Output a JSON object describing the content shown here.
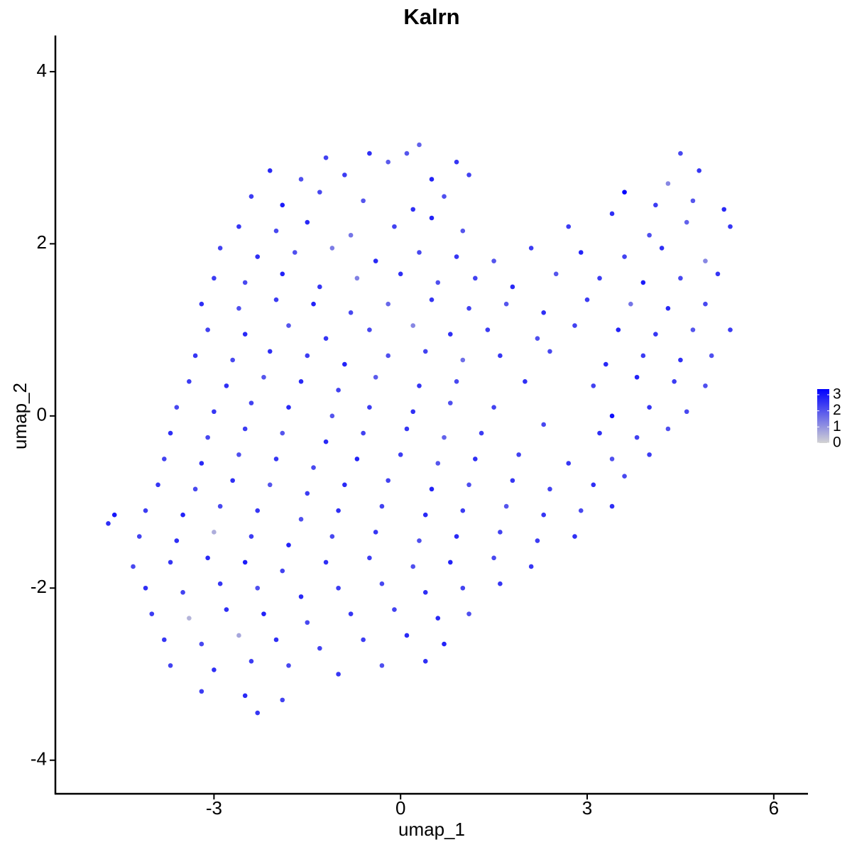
{
  "chart_data": {
    "type": "scatter",
    "title": "Kalrn",
    "x_label": "umap_1",
    "y_label": "umap_2",
    "xlim": [
      -5.55,
      6.55
    ],
    "ylim": [
      -4.39,
      4.42
    ],
    "xticks": [
      -3,
      0,
      3,
      6
    ],
    "yticks": [
      -4,
      -2,
      0,
      2,
      4
    ],
    "color_low": "#d3d3d3",
    "color_high": "#0000ff",
    "clim": [
      0,
      3.35
    ],
    "colorbar_ticks": [
      0,
      1,
      2,
      3
    ],
    "x": [
      -1.2,
      -0.5,
      0.1,
      0.3,
      0.9,
      4.5,
      -2.1,
      -1.6,
      -0.9,
      -0.2,
      0.5,
      1.1,
      4.3,
      4.8,
      -2.4,
      -1.9,
      -1.3,
      -0.6,
      0.2,
      0.7,
      3.6,
      4.1,
      4.7,
      5.2,
      -2.6,
      -2.0,
      -1.5,
      -0.8,
      -0.1,
      0.5,
      1.0,
      2.7,
      3.4,
      4.0,
      4.6,
      5.3,
      -2.9,
      -2.3,
      -1.7,
      -1.1,
      -0.4,
      0.3,
      0.9,
      1.5,
      2.1,
      2.9,
      3.6,
      4.2,
      4.9,
      -3.0,
      -2.5,
      -1.9,
      -1.3,
      -0.7,
      0.0,
      0.6,
      1.2,
      1.8,
      2.5,
      3.2,
      3.9,
      4.5,
      5.1,
      -3.2,
      -2.6,
      -2.0,
      -1.4,
      -0.8,
      -0.2,
      0.5,
      1.1,
      1.7,
      2.3,
      3.0,
      3.7,
      4.3,
      4.9,
      -3.1,
      -2.5,
      -1.8,
      -1.2,
      -0.5,
      0.2,
      0.8,
      1.4,
      2.2,
      2.8,
      3.5,
      4.1,
      4.7,
      5.3,
      -3.3,
      -2.7,
      -2.1,
      -1.5,
      -0.9,
      -0.2,
      0.4,
      1.0,
      1.6,
      2.4,
      3.3,
      3.9,
      4.5,
      5.0,
      -3.4,
      -2.8,
      -2.2,
      -1.6,
      -1.0,
      -0.4,
      0.3,
      0.9,
      2.0,
      3.1,
      3.8,
      4.4,
      4.9,
      -3.6,
      -3.0,
      -2.4,
      -1.8,
      -1.1,
      -0.5,
      0.2,
      0.8,
      1.5,
      3.4,
      4.0,
      4.6,
      -3.7,
      -3.1,
      -2.5,
      -1.9,
      -1.2,
      -0.6,
      0.1,
      0.7,
      1.3,
      2.3,
      3.2,
      3.8,
      4.3,
      -3.8,
      -3.2,
      -2.6,
      -2.0,
      -1.4,
      -0.7,
      0.0,
      0.6,
      1.2,
      1.9,
      2.7,
      3.4,
      4.0,
      -3.9,
      -3.3,
      -2.7,
      -2.1,
      -1.5,
      -0.9,
      -0.2,
      0.5,
      1.1,
      1.8,
      2.4,
      3.1,
      3.6,
      -4.1,
      -3.5,
      -2.9,
      -2.3,
      -1.6,
      -1.0,
      -0.3,
      0.4,
      1.0,
      1.7,
      2.3,
      2.9,
      3.4,
      -4.2,
      -3.6,
      -3.0,
      -2.4,
      -1.8,
      -1.1,
      -0.4,
      0.3,
      0.9,
      1.6,
      2.2,
      2.8,
      -4.3,
      -3.7,
      -3.1,
      -2.5,
      -1.9,
      -1.2,
      -0.5,
      0.2,
      0.8,
      1.5,
      2.1,
      -4.1,
      -3.5,
      -2.9,
      -2.3,
      -1.6,
      -1.0,
      -0.3,
      0.4,
      1.0,
      1.6,
      -4.0,
      -3.4,
      -2.8,
      -2.2,
      -1.5,
      -0.8,
      -0.1,
      0.6,
      1.1,
      -3.8,
      -3.2,
      -2.6,
      -2.0,
      -1.3,
      -0.6,
      0.1,
      0.7,
      -3.7,
      -3.0,
      -2.4,
      -1.8,
      -1.0,
      -0.3,
      0.4,
      -3.2,
      -2.5,
      -1.9,
      -2.3,
      -4.7,
      -4.6
    ],
    "y": [
      3.0,
      3.05,
      3.05,
      3.15,
      2.95,
      3.05,
      2.85,
      2.75,
      2.8,
      2.95,
      2.75,
      2.8,
      2.7,
      2.85,
      2.55,
      2.45,
      2.6,
      2.5,
      2.4,
      2.55,
      2.6,
      2.45,
      2.5,
      2.4,
      2.2,
      2.15,
      2.25,
      2.1,
      2.2,
      2.3,
      2.15,
      2.2,
      2.35,
      2.1,
      2.25,
      2.2,
      1.95,
      1.85,
      1.9,
      1.95,
      1.8,
      1.9,
      1.85,
      1.8,
      1.95,
      1.9,
      1.85,
      1.95,
      1.8,
      1.6,
      1.55,
      1.65,
      1.5,
      1.6,
      1.65,
      1.55,
      1.6,
      1.5,
      1.65,
      1.6,
      1.55,
      1.6,
      1.65,
      1.3,
      1.25,
      1.35,
      1.3,
      1.2,
      1.3,
      1.35,
      1.25,
      1.3,
      1.2,
      1.35,
      1.3,
      1.25,
      1.3,
      1.0,
      0.95,
      1.05,
      0.9,
      1.0,
      1.05,
      0.95,
      1.0,
      0.9,
      1.05,
      1.0,
      0.95,
      1.0,
      1.0,
      0.7,
      0.65,
      0.75,
      0.7,
      0.6,
      0.7,
      0.75,
      0.65,
      0.7,
      0.75,
      0.6,
      0.7,
      0.65,
      0.7,
      0.4,
      0.35,
      0.45,
      0.4,
      0.3,
      0.45,
      0.35,
      0.4,
      0.4,
      0.35,
      0.45,
      0.4,
      0.35,
      0.1,
      0.05,
      0.15,
      0.1,
      0.0,
      0.1,
      0.05,
      0.15,
      0.1,
      0.0,
      0.1,
      0.05,
      -0.2,
      -0.25,
      -0.15,
      -0.2,
      -0.3,
      -0.2,
      -0.15,
      -0.25,
      -0.2,
      -0.1,
      -0.2,
      -0.25,
      -0.15,
      -0.5,
      -0.55,
      -0.45,
      -0.5,
      -0.6,
      -0.5,
      -0.45,
      -0.55,
      -0.5,
      -0.45,
      -0.55,
      -0.5,
      -0.45,
      -0.8,
      -0.85,
      -0.75,
      -0.8,
      -0.9,
      -0.8,
      -0.75,
      -0.85,
      -0.8,
      -0.75,
      -0.85,
      -0.8,
      -0.7,
      -1.1,
      -1.15,
      -1.05,
      -1.1,
      -1.2,
      -1.1,
      -1.05,
      -1.15,
      -1.1,
      -1.05,
      -1.15,
      -1.1,
      -1.05,
      -1.4,
      -1.45,
      -1.35,
      -1.4,
      -1.5,
      -1.4,
      -1.35,
      -1.45,
      -1.4,
      -1.35,
      -1.45,
      -1.4,
      -1.75,
      -1.7,
      -1.65,
      -1.7,
      -1.8,
      -1.7,
      -1.65,
      -1.75,
      -1.7,
      -1.65,
      -1.75,
      -2.0,
      -2.05,
      -1.95,
      -2.0,
      -2.1,
      -2.0,
      -1.95,
      -2.05,
      -2.0,
      -1.95,
      -2.3,
      -2.35,
      -2.25,
      -2.3,
      -2.4,
      -2.3,
      -2.25,
      -2.35,
      -2.3,
      -2.6,
      -2.65,
      -2.55,
      -2.6,
      -2.7,
      -2.6,
      -2.55,
      -2.65,
      -2.9,
      -2.95,
      -2.85,
      -2.9,
      -3.0,
      -2.9,
      -2.85,
      -3.2,
      -3.25,
      -3.3,
      -3.45,
      -1.25,
      -1.15
    ],
    "values": [
      2.3,
      2.6,
      2.0,
      1.8,
      2.5,
      2.2,
      2.7,
      2.1,
      2.4,
      1.9,
      2.8,
      2.3,
      1.2,
      2.5,
      2.4,
      2.9,
      2.2,
      2.0,
      2.6,
      2.1,
      3.3,
      2.4,
      2.0,
      2.7,
      2.5,
      2.2,
      2.7,
      1.5,
      2.3,
      2.8,
      2.0,
      2.4,
      2.6,
      2.1,
      1.8,
      2.5,
      2.3,
      2.6,
      2.1,
      1.4,
      2.7,
      2.2,
      2.5,
      2.0,
      2.4,
      2.8,
      2.3,
      2.6,
      1.2,
      2.4,
      2.2,
      2.8,
      2.5,
      1.3,
      2.6,
      2.1,
      2.3,
      2.7,
      2.0,
      2.4,
      2.9,
      2.2,
      2.5,
      2.6,
      2.1,
      2.4,
      2.8,
      2.2,
      1.7,
      2.5,
      2.3,
      2.0,
      2.6,
      2.4,
      1.5,
      2.7,
      2.2,
      2.3,
      2.7,
      2.0,
      2.5,
      2.2,
      1.2,
      2.6,
      2.4,
      2.1,
      2.3,
      2.8,
      2.5,
      2.0,
      2.4,
      2.5,
      2.2,
      2.6,
      2.4,
      2.8,
      2.1,
      2.3,
      1.6,
      2.5,
      2.2,
      2.7,
      2.4,
      2.6,
      2.1,
      2.4,
      2.6,
      2.0,
      2.7,
      2.3,
      1.9,
      2.5,
      2.2,
      2.6,
      2.3,
      2.8,
      2.4,
      2.1,
      2.2,
      2.5,
      2.3,
      2.7,
      2.0,
      2.4,
      2.6,
      2.1,
      2.3,
      3.1,
      2.5,
      2.2,
      2.6,
      2.2,
      2.4,
      2.0,
      2.7,
      2.3,
      2.5,
      1.8,
      2.4,
      2.2,
      2.6,
      2.3,
      2.1,
      2.3,
      2.7,
      2.1,
      2.5,
      2.2,
      2.8,
      2.4,
      2.0,
      2.6,
      2.3,
      2.5,
      2.1,
      2.4,
      2.5,
      2.2,
      2.6,
      2.0,
      2.4,
      2.7,
      2.3,
      2.8,
      2.1,
      2.5,
      2.3,
      2.6,
      2.2,
      2.4,
      2.8,
      2.2,
      2.5,
      2.1,
      2.6,
      2.3,
      2.7,
      2.4,
      2.0,
      2.5,
      2.2,
      2.6,
      2.3,
      2.6,
      0.6,
      2.4,
      2.8,
      2.2,
      2.5,
      2.1,
      2.7,
      2.3,
      2.4,
      2.6,
      2.2,
      2.5,
      2.7,
      2.9,
      2.3,
      2.6,
      2.4,
      2.1,
      2.8,
      2.2,
      2.5,
      2.6,
      2.3,
      2.5,
      2.1,
      2.7,
      2.4,
      2.2,
      2.6,
      2.3,
      2.5,
      2.4,
      0.5,
      2.6,
      2.8,
      2.2,
      2.5,
      2.3,
      2.7,
      2.1,
      2.5,
      2.2,
      0.7,
      2.6,
      2.3,
      2.4,
      2.7,
      2.8,
      2.3,
      2.6,
      2.4,
      2.2,
      2.5,
      2.1,
      2.6,
      2.4,
      2.7,
      2.3,
      2.5,
      2.6,
      3.0
    ]
  }
}
